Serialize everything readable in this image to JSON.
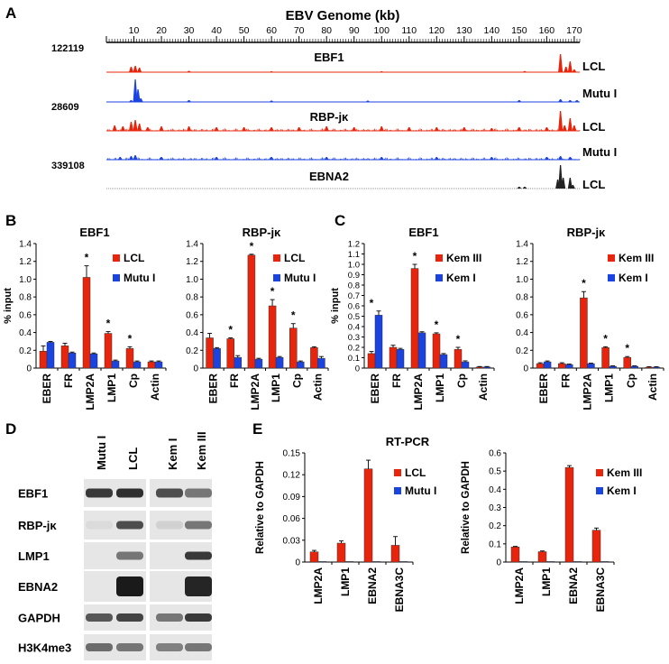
{
  "panel_labels": {
    "A": "A",
    "B": "B",
    "C": "C",
    "D": "D",
    "E": "E"
  },
  "colors": {
    "red": "#e8250c",
    "blue": "#1b43e0",
    "dark": "#222222",
    "grey": "#888888"
  },
  "panel_a": {
    "title": "EBV Genome (kb)",
    "ticks": [
      "10",
      "20",
      "30",
      "40",
      "50",
      "60",
      "70",
      "80",
      "90",
      "100",
      "110",
      "120",
      "130",
      "140",
      "150",
      "160",
      "170"
    ],
    "tracks": [
      {
        "scale": "122119",
        "factor": "EBF1",
        "cell": "LCL",
        "color": "red"
      },
      {
        "scale": "",
        "factor": "",
        "cell": "Mutu I",
        "color": "blue"
      },
      {
        "scale": "28609",
        "factor": "RBP-jκ",
        "cell": "LCL",
        "color": "red"
      },
      {
        "scale": "",
        "factor": "",
        "cell": "Mutu I",
        "color": "blue"
      },
      {
        "scale": "339108",
        "factor": "EBNA2",
        "cell": "LCL",
        "color": "dark"
      }
    ]
  },
  "chart_data": [
    {
      "id": "B1",
      "type": "bar",
      "title": "EBF1",
      "ylabel": "% input",
      "ylim": [
        0,
        1.4
      ],
      "yticks": [
        "0",
        "0.2",
        "0.4",
        "0.6",
        "0.8",
        "1.0",
        "1.2",
        "1.4"
      ],
      "categories": [
        "EBER",
        "FR",
        "LMP2A",
        "LMP1",
        "Cp",
        "Actin"
      ],
      "series": [
        {
          "name": "LCL",
          "values": [
            0.19,
            0.25,
            1.02,
            0.39,
            0.22,
            0.07
          ],
          "errors": [
            0.06,
            0.03,
            0.13,
            0.02,
            0.02,
            0.01
          ]
        },
        {
          "name": "Mutu I",
          "values": [
            0.29,
            0.17,
            0.16,
            0.08,
            0.07,
            0.07
          ],
          "errors": [
            0.01,
            0.01,
            0.01,
            0.01,
            0.01,
            0.01
          ]
        }
      ],
      "stars": [
        2,
        3,
        4
      ]
    },
    {
      "id": "B2",
      "type": "bar",
      "title": "RBP-jκ",
      "ylabel": "",
      "ylim": [
        0,
        1.4
      ],
      "yticks": [
        "0",
        "0.2",
        "0.4",
        "0.6",
        "0.8",
        "1.0",
        "1.2",
        "1.4"
      ],
      "categories": [
        "EBER",
        "FR",
        "LMP2A",
        "LMP1",
        "Cp",
        "Actin"
      ],
      "series": [
        {
          "name": "LCL",
          "values": [
            0.34,
            0.33,
            1.27,
            0.7,
            0.45,
            0.23
          ],
          "errors": [
            0.05,
            0.01,
            0.01,
            0.07,
            0.05,
            0.01
          ]
        },
        {
          "name": "Mutu I",
          "values": [
            0.22,
            0.12,
            0.1,
            0.12,
            0.07,
            0.11
          ],
          "errors": [
            0.01,
            0.02,
            0.01,
            0.01,
            0.01,
            0.02
          ]
        }
      ],
      "stars": [
        1,
        2,
        3,
        4
      ]
    },
    {
      "id": "C1",
      "type": "bar",
      "title": "EBF1",
      "ylabel": "% input",
      "ylim": [
        0,
        1.2
      ],
      "yticks": [
        "0",
        "0.1",
        "0.2",
        "0.3",
        "0.4",
        "0.5",
        "0.6",
        "0.7",
        "0.8",
        "0.9",
        "1.0",
        "1.1",
        "1.2"
      ],
      "categories": [
        "EBER",
        "FR",
        "LMP2A",
        "LMP1",
        "Cp",
        "Actin"
      ],
      "series": [
        {
          "name": "Kem III",
          "values": [
            0.14,
            0.2,
            0.96,
            0.33,
            0.18,
            0.01
          ],
          "errors": [
            0.02,
            0.02,
            0.04,
            0.01,
            0.02,
            0.005
          ]
        },
        {
          "name": "Kem I",
          "values": [
            0.51,
            0.18,
            0.34,
            0.13,
            0.06,
            0.01
          ],
          "errors": [
            0.04,
            0.01,
            0.01,
            0.01,
            0.01,
            0.005
          ]
        }
      ],
      "stars": [
        0,
        2,
        3,
        4
      ]
    },
    {
      "id": "C2",
      "type": "bar",
      "title": "RBP-jκ",
      "ylabel": "",
      "ylim": [
        0,
        1.4
      ],
      "yticks": [
        "0",
        "0.2",
        "0.4",
        "0.6",
        "0.8",
        "1.0",
        "1.2",
        "1.4"
      ],
      "categories": [
        "EBER",
        "FR",
        "LMP2A",
        "LMP1",
        "Cp",
        "Actin"
      ],
      "series": [
        {
          "name": "Kem III",
          "values": [
            0.05,
            0.05,
            0.79,
            0.23,
            0.12,
            0.01
          ],
          "errors": [
            0.01,
            0.01,
            0.07,
            0.01,
            0.01,
            0.005
          ]
        },
        {
          "name": "Kem I",
          "values": [
            0.07,
            0.04,
            0.05,
            0.02,
            0.02,
            0.01
          ],
          "errors": [
            0.01,
            0.005,
            0.005,
            0.005,
            0.005,
            0.005
          ]
        }
      ],
      "stars": [
        2,
        3,
        4
      ]
    },
    {
      "id": "E1",
      "type": "bar",
      "title": "",
      "ylabel": "Relative to GAPDH",
      "ylim": [
        0,
        0.15
      ],
      "yticks": [
        "0",
        "0.03",
        "0.06",
        "0.09",
        "0.12",
        "0.15"
      ],
      "categories": [
        "LMP2A",
        "LMP1",
        "EBNA2",
        "EBNA3C"
      ],
      "series": [
        {
          "name": "LCL",
          "values": [
            0.014,
            0.026,
            0.128,
            0.023
          ],
          "errors": [
            0.002,
            0.003,
            0.012,
            0.012
          ]
        },
        {
          "name": "Mutu I",
          "values": [
            0.0005,
            0.0005,
            0.0005,
            0.0005
          ],
          "errors": [
            0,
            0,
            0,
            0
          ]
        }
      ],
      "stars": []
    },
    {
      "id": "E2",
      "type": "bar",
      "title": "",
      "ylabel": "Relative to GAPDH",
      "ylim": [
        0,
        0.6
      ],
      "yticks": [
        "0",
        "0.1",
        "0.2",
        "0.3",
        "0.4",
        "0.5",
        "0.6"
      ],
      "categories": [
        "LMP2A",
        "LMP1",
        "EBNA2",
        "EBNA3C"
      ],
      "series": [
        {
          "name": "Kem III",
          "values": [
            0.083,
            0.057,
            0.52,
            0.175
          ],
          "errors": [
            0.003,
            0.004,
            0.01,
            0.012
          ]
        },
        {
          "name": "Kem I",
          "values": [
            0.002,
            0.002,
            0.002,
            0.002
          ],
          "errors": [
            0,
            0,
            0,
            0
          ]
        }
      ],
      "stars": []
    }
  ],
  "panel_e": {
    "title": "RT-PCR"
  },
  "panel_d": {
    "lanes": [
      "Mutu I",
      "LCL",
      "Kem I",
      "Kem III"
    ],
    "rows": [
      {
        "label": "EBF1",
        "bands": [
          0.85,
          0.9,
          0.75,
          0.55
        ]
      },
      {
        "label": "RBP-jκ",
        "bands": [
          0.05,
          0.75,
          0.1,
          0.55
        ]
      },
      {
        "label": "LMP1",
        "bands": [
          0.0,
          0.55,
          0.0,
          0.85
        ]
      },
      {
        "label": "EBNA2",
        "bands": [
          0.0,
          1.0,
          0.0,
          0.95
        ]
      },
      {
        "label": "GAPDH",
        "bands": [
          0.7,
          0.8,
          0.55,
          0.85
        ]
      },
      {
        "label": "H3K4me3",
        "bands": [
          0.6,
          0.55,
          0.5,
          0.55
        ]
      }
    ]
  }
}
